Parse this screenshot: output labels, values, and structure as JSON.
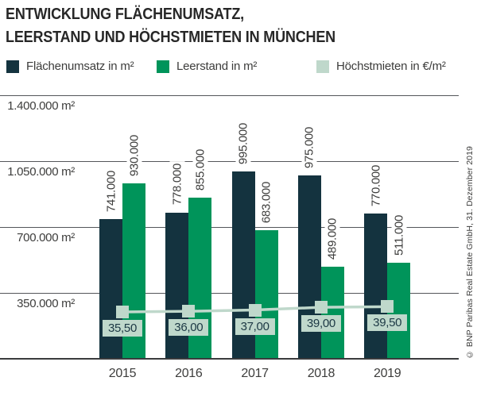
{
  "title": {
    "line1": "ENTWICKLUNG FLÄCHENUMSATZ,",
    "line2": "LEERSTAND UND HÖCHSTMIETEN IN MÜNCHEN"
  },
  "legend": [
    {
      "label": "Flächenumsatz in m²",
      "color": "#14333F"
    },
    {
      "label": "Leerstand in m²",
      "color": "#00945A"
    },
    {
      "label": "Höchstmieten in €/m²",
      "color": "#BFD8CB"
    }
  ],
  "credit": "© BNP Paribas Real Estate GmbH, 31. Dezember 2019",
  "colors": {
    "bar_primary": "#14333F",
    "bar_secondary": "#00945A",
    "line_tertiary": "#BFD8CB",
    "badge_text": "#1C3844",
    "grid": "#54565A",
    "text": "#3D3D3C"
  },
  "chart_data": {
    "type": "bar",
    "title": "Entwicklung Flächenumsatz, Leerstand und Höchstmieten in München",
    "categories": [
      "2015",
      "2016",
      "2017",
      "2018",
      "2019"
    ],
    "series": [
      {
        "name": "Flächenumsatz in m²",
        "type": "bar",
        "color": "#14333F",
        "values": [
          741000,
          778000,
          995000,
          975000,
          770000
        ],
        "value_labels": [
          "741.000",
          "778.000",
          "995.000",
          "975.000",
          "770.000"
        ]
      },
      {
        "name": "Leerstand in m²",
        "type": "bar",
        "color": "#00945A",
        "values": [
          930000,
          855000,
          683000,
          489000,
          511000
        ],
        "value_labels": [
          "930.000",
          "855.000",
          "683.000",
          "489.000",
          "511.000"
        ]
      },
      {
        "name": "Höchstmieten in €/m²",
        "type": "line",
        "color": "#BFD8CB",
        "values": [
          35.5,
          36.0,
          37.0,
          39.0,
          39.5
        ],
        "value_labels": [
          "35,50",
          "36,00",
          "37,00",
          "39,00",
          "39,50"
        ]
      }
    ],
    "y_axis": {
      "unit": "m²",
      "ylim": [
        0,
        1400000
      ],
      "grid": true,
      "ticks": [
        {
          "value": 1400000,
          "label": "1.400.000 m²"
        },
        {
          "value": 1050000,
          "label": "1.050.000 m²"
        },
        {
          "value": 700000,
          "label": "700.000 m²"
        },
        {
          "value": 350000,
          "label": "350.000 m²"
        }
      ]
    },
    "legend_position": "top"
  }
}
